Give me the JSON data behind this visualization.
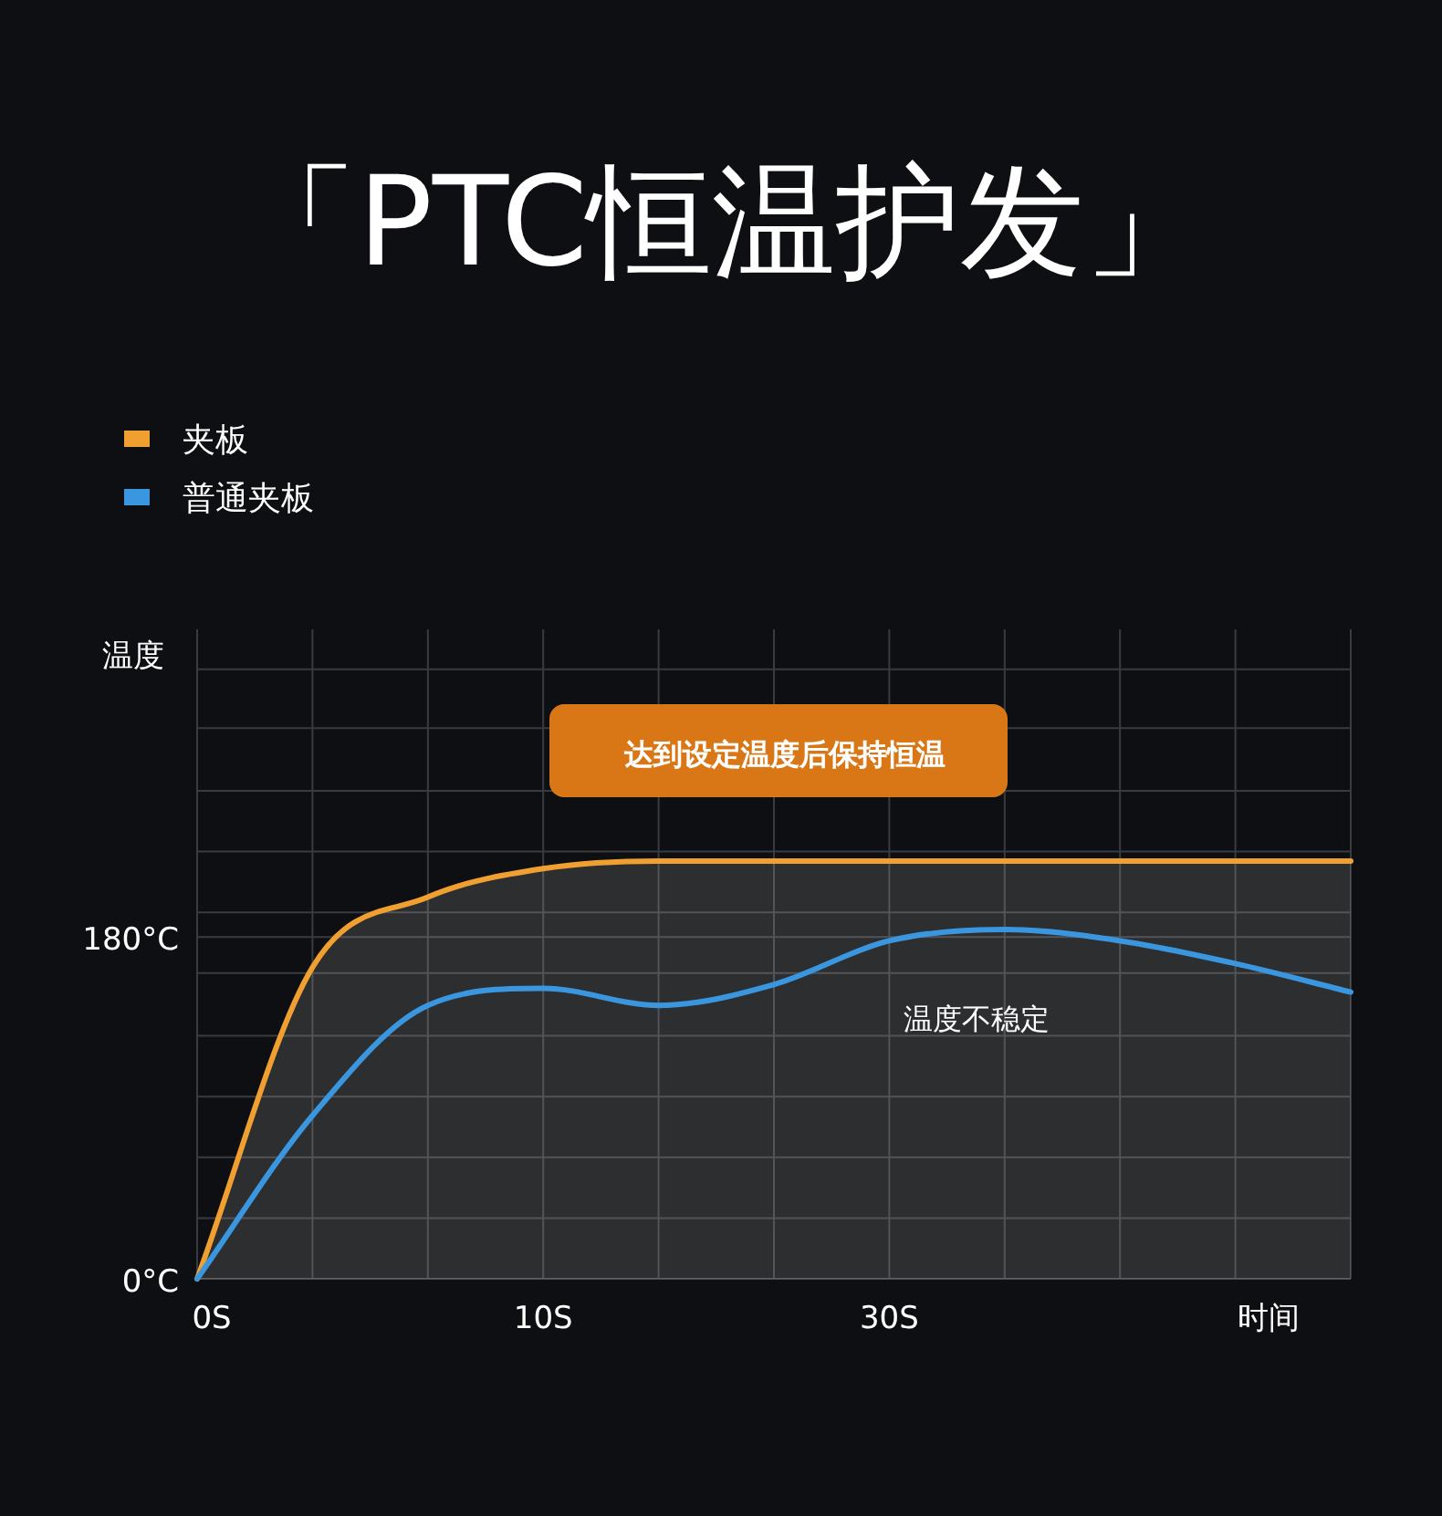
{
  "chart_data": {
    "type": "line",
    "title": "「PTC恒温护发」",
    "categories": [
      "0S",
      null,
      null,
      "10S",
      null,
      null,
      "30S",
      null,
      null,
      null,
      null
    ],
    "xlabel": "时间",
    "ylabel": "温度",
    "series": [
      {
        "name": "夹板",
        "type": "area",
        "color": "#f0a030",
        "values": [
          0,
          164,
          201,
          216,
          220,
          220,
          220,
          220,
          220,
          220,
          220
        ]
      },
      {
        "name": "普通夹板",
        "color": "#3a96de",
        "values": [
          0,
          86,
          144,
          153,
          144,
          155,
          178,
          184,
          178,
          166,
          151
        ]
      }
    ],
    "ylim": [
      0,
      342
    ],
    "yticks": [
      {
        "value": 0,
        "label": "0°C"
      },
      {
        "value": 32,
        "label": null
      },
      {
        "value": 64,
        "label": null
      },
      {
        "value": 96,
        "label": null
      },
      {
        "value": 128,
        "label": null
      },
      {
        "value": 161,
        "label": null
      },
      {
        "value": 180,
        "label": "180°C"
      },
      {
        "value": 193,
        "label": null
      },
      {
        "value": 225,
        "label": null
      },
      {
        "value": 257,
        "label": null
      },
      {
        "value": 290,
        "label": null
      },
      {
        "value": 321,
        "label": null
      }
    ],
    "grid": true,
    "legend": "top left",
    "annotations": [
      "达到设定温度后保持恒温",
      "温度不稳定"
    ]
  }
}
